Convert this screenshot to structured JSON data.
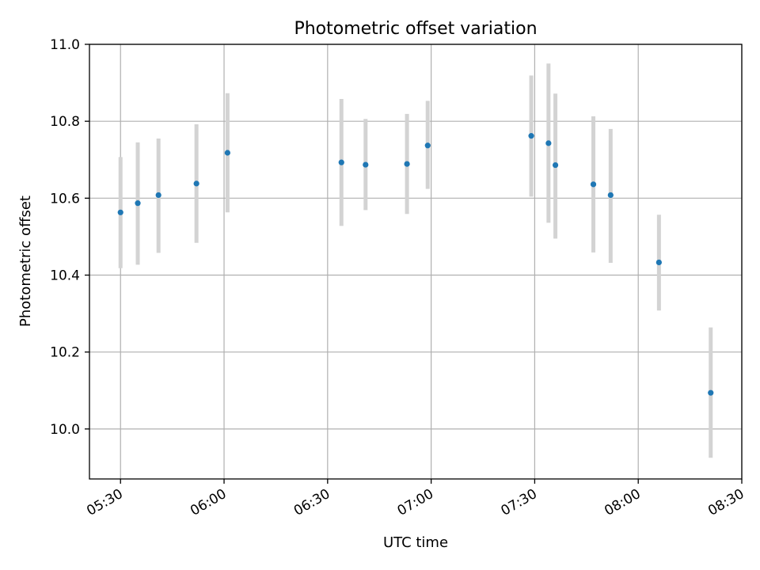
{
  "chart_data": {
    "type": "scatter",
    "title": "Photometric offset variation",
    "xlabel": "UTC time",
    "ylabel": "Photometric offset",
    "grid": true,
    "xlim": [
      "05:21",
      "08:30"
    ],
    "ylim": [
      9.87,
      11.0
    ],
    "x_ticks": [
      "05:30",
      "06:00",
      "06:30",
      "07:00",
      "07:30",
      "08:00",
      "08:30"
    ],
    "y_ticks": [
      10.0,
      10.2,
      10.4,
      10.6,
      10.8,
      11.0
    ],
    "point_color": "#1f77b4",
    "errorbar_color": "#d3d3d3",
    "points": [
      {
        "time": "05:30",
        "value": 10.563,
        "err_low": 10.418,
        "err_high": 10.707
      },
      {
        "time": "05:35",
        "value": 10.587,
        "err_low": 10.427,
        "err_high": 10.745
      },
      {
        "time": "05:41",
        "value": 10.608,
        "err_low": 10.458,
        "err_high": 10.755
      },
      {
        "time": "05:52",
        "value": 10.638,
        "err_low": 10.484,
        "err_high": 10.792
      },
      {
        "time": "06:01",
        "value": 10.718,
        "err_low": 10.563,
        "err_high": 10.873
      },
      {
        "time": "06:34",
        "value": 10.693,
        "err_low": 10.528,
        "err_high": 10.858
      },
      {
        "time": "06:41",
        "value": 10.687,
        "err_low": 10.569,
        "err_high": 10.806
      },
      {
        "time": "06:53",
        "value": 10.689,
        "err_low": 10.559,
        "err_high": 10.819
      },
      {
        "time": "06:59",
        "value": 10.737,
        "err_low": 10.624,
        "err_high": 10.853
      },
      {
        "time": "07:29",
        "value": 10.762,
        "err_low": 10.604,
        "err_high": 10.919
      },
      {
        "time": "07:34",
        "value": 10.743,
        "err_low": 10.536,
        "err_high": 10.95
      },
      {
        "time": "07:36",
        "value": 10.686,
        "err_low": 10.495,
        "err_high": 10.872
      },
      {
        "time": "07:47",
        "value": 10.636,
        "err_low": 10.459,
        "err_high": 10.813
      },
      {
        "time": "07:52",
        "value": 10.608,
        "err_low": 10.432,
        "err_high": 10.78
      },
      {
        "time": "08:06",
        "value": 10.433,
        "err_low": 10.308,
        "err_high": 10.557
      },
      {
        "time": "08:21",
        "value": 10.094,
        "err_low": 9.925,
        "err_high": 10.264
      }
    ]
  }
}
